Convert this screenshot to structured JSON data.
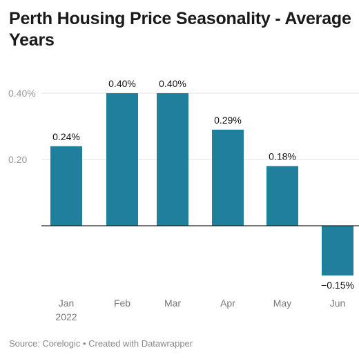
{
  "title": "Perth Housing Price Seasonality - Average\nYears",
  "source": "Source: Corelogic • Created with Datawrapper",
  "colors": {
    "bar": "#1f7f9c",
    "axis": "#222222",
    "grid": "#e1e1e1",
    "tick": "#999999",
    "label": "#111111"
  },
  "chart_data": {
    "type": "bar",
    "title": "Perth Housing Price Seasonality - Average Years",
    "categories": [
      "Jan\n2022",
      "Feb",
      "Mar",
      "Apr",
      "May",
      "Jun"
    ],
    "values": [
      0.24,
      0.4,
      0.4,
      0.29,
      0.18,
      -0.15
    ],
    "value_labels": [
      "0.24%",
      "0.40%",
      "0.40%",
      "0.29%",
      "0.18%",
      "−0.15%"
    ],
    "y_ticks": [
      0.2,
      0.4
    ],
    "y_tick_labels": [
      "0.20",
      "0.40%"
    ],
    "ylim": [
      -0.15,
      0.4
    ],
    "grid": true,
    "xlabel": "",
    "ylabel": ""
  }
}
